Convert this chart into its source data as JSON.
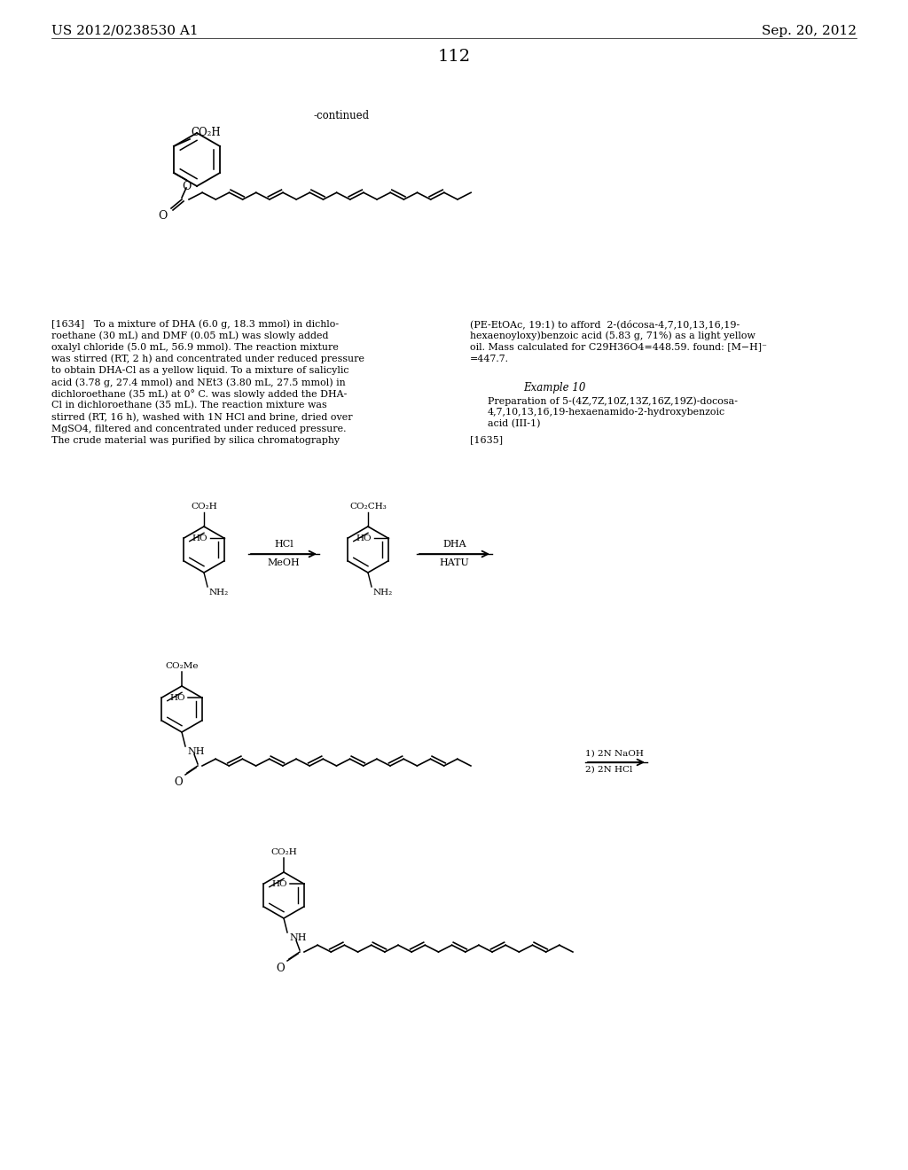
{
  "header_left": "US 2012/0238530 A1",
  "header_right": "Sep. 20, 2012",
  "page_number": "112",
  "continued_label": "-continued",
  "background_color": "#ffffff",
  "text_color": "#000000",
  "body_left": [
    "[1634]   To a mixture of DHA (6.0 g, 18.3 mmol) in dichlo-",
    "roethane (30 mL) and DMF (0.05 mL) was slowly added",
    "oxalyl chloride (5.0 mL, 56.9 mmol). The reaction mixture",
    "was stirred (RT, 2 h) and concentrated under reduced pressure",
    "to obtain DHA-Cl as a yellow liquid. To a mixture of salicylic",
    "acid (3.78 g, 27.4 mmol) and NEt3 (3.80 mL, 27.5 mmol) in",
    "dichloroethane (35 mL) at 0° C. was slowly added the DHA-",
    "Cl in dichloroethane (35 mL). The reaction mixture was",
    "stirred (RT, 16 h), washed with 1N HCl and brine, dried over",
    "MgSO4, filtered and concentrated under reduced pressure.",
    "The crude material was purified by silica chromatography"
  ],
  "body_right": [
    "(PE-EtOAc, 19:1) to afford  2-(dócosa-4,7,10,13,16,19-",
    "hexaenoyloxy)benzoic acid (5.83 g, 71%) as a light yellow",
    "oil. Mass calculated for C29H36O4=448.59. found: [M−H]⁻",
    "=447.7."
  ],
  "example10_label": "Example 10",
  "example10_lines": [
    "Preparation of 5-(4Z,7Z,10Z,13Z,16Z,19Z)-docosa-",
    "4,7,10,13,16,19-hexaenamido-2-hydroxybenzoic",
    "acid (III-1)"
  ],
  "label_1635": "[1635]"
}
